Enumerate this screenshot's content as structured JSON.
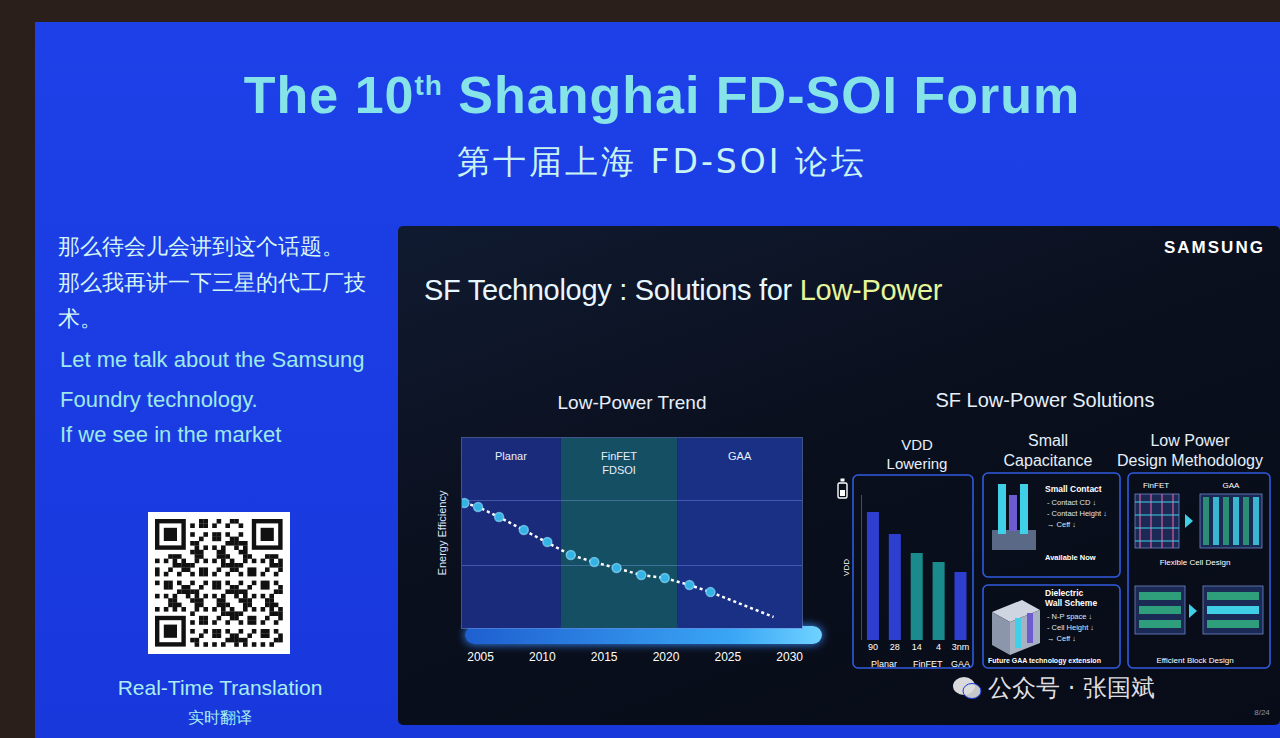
{
  "screen": {
    "title": {
      "before": "The 10",
      "superscript": "th",
      "after": " Shanghai FD-SOI Forum"
    },
    "subtitle": "第十届上海 FD-SOI 论坛",
    "caption_lines": [
      "那么待会儿会讲到这个话题。",
      "那么我再讲一下三星的代工厂技",
      "术。"
    ],
    "translation_lines": [
      "Let me talk about the Samsung",
      "Foundry technology.",
      "If we see in the market"
    ],
    "qr_caption": "Real-Time Translation",
    "qr_caption_zh": "实时翻译",
    "watermark": "公众号 · 张国斌"
  },
  "slide": {
    "logo": "SAMSUNG",
    "title_before": "SF Technology : Solutions for ",
    "title_highlight": "Low-Power",
    "page": "8/24",
    "solutions_heading": "SF Low-Power Solutions",
    "small_capacitance": {
      "heading": [
        "Small",
        "Capacitance"
      ],
      "panels": [
        {
          "title": [
            "Small Contact"
          ],
          "lines": [
            "- Contact CD ↓",
            "- Contact Height ↓",
            "→ Ceff ↓"
          ],
          "footer": "Available Now"
        },
        {
          "title": [
            "Dielectric",
            "Wall Scheme"
          ],
          "lines": [
            "- N-P space ↓",
            "- Cell Height ↓",
            "→ Ceff ↓"
          ],
          "footer": "Future GAA technology extension"
        }
      ]
    },
    "design_methodology": {
      "heading": [
        "Low Power",
        "Design Methodology"
      ],
      "from": "FinFET",
      "to": "GAA",
      "items": [
        "Flexible Cell Design",
        "Efficient Block Design"
      ]
    }
  },
  "chart_data": [
    {
      "type": "scatter",
      "title": "Low-Power Trend",
      "y_label": "Energy Efficiency",
      "xlim": [
        2003.5,
        2031
      ],
      "xticks": [
        2005,
        2010,
        2015,
        2020,
        2025,
        2030
      ],
      "ylim": [
        0,
        100
      ],
      "yticks": [
        33,
        67
      ],
      "grid": true,
      "tick_labels": "x",
      "regions": [
        {
          "label": [
            "Planar"
          ],
          "start": 2003.5,
          "end": 2011.5,
          "color": "#1b2b7c"
        },
        {
          "label": [
            "FinFET",
            "FDSOI"
          ],
          "start": 2011.5,
          "end": 2020.9,
          "color": "#144f63"
        },
        {
          "label": [
            "GAA"
          ],
          "start": 2020.9,
          "end": 2031,
          "color": "#1a3085"
        }
      ],
      "series": [
        {
          "type": "line",
          "line_style": "dotted",
          "color": "#ffffff",
          "x": [
            2003.7,
            2004.8,
            2006.5,
            2008.5,
            2010.4,
            2012.3,
            2014.2,
            2016.0,
            2018.0,
            2019.9,
            2021.9,
            2023.6,
            2028.7
          ],
          "values": [
            65.8,
            63.7,
            58.4,
            51.6,
            45.3,
            38.4,
            34.7,
            31.6,
            27.9,
            26.3,
            22.6,
            18.9,
            5.8
          ]
        },
        {
          "type": "scatter",
          "marker": "circle",
          "color": "#36b3e6",
          "x": [
            2003.7,
            2004.8,
            2006.5,
            2008.5,
            2010.4,
            2012.3,
            2014.2,
            2016.0,
            2018.0,
            2019.9,
            2021.9,
            2023.6
          ],
          "values": [
            65.8,
            63.7,
            58.4,
            51.6,
            45.3,
            38.4,
            34.7,
            31.6,
            27.9,
            26.3,
            22.6,
            18.9
          ]
        }
      ]
    },
    {
      "type": "bar",
      "title": [
        "VDD",
        "Lowering"
      ],
      "y_label": "VDD",
      "categories": [
        "90",
        "28",
        "14",
        "4",
        "3nm"
      ],
      "values": [
        88.3,
        73.1,
        60,
        53.8,
        46.9
      ],
      "colors": [
        "#2e3fd0",
        "#2e3fd0",
        "#1b8a8c",
        "#1b8a8c",
        "#2e3fd0"
      ],
      "groups": [
        {
          "label": "Planar",
          "categories": [
            "90",
            "28"
          ]
        },
        {
          "label": "FinFET",
          "categories": [
            "14",
            "4"
          ]
        },
        {
          "label": "GAA",
          "categories": [
            "3nm"
          ]
        }
      ],
      "ylim": [
        0,
        100
      ],
      "yticks": [],
      "tick_labels": "x"
    }
  ]
}
